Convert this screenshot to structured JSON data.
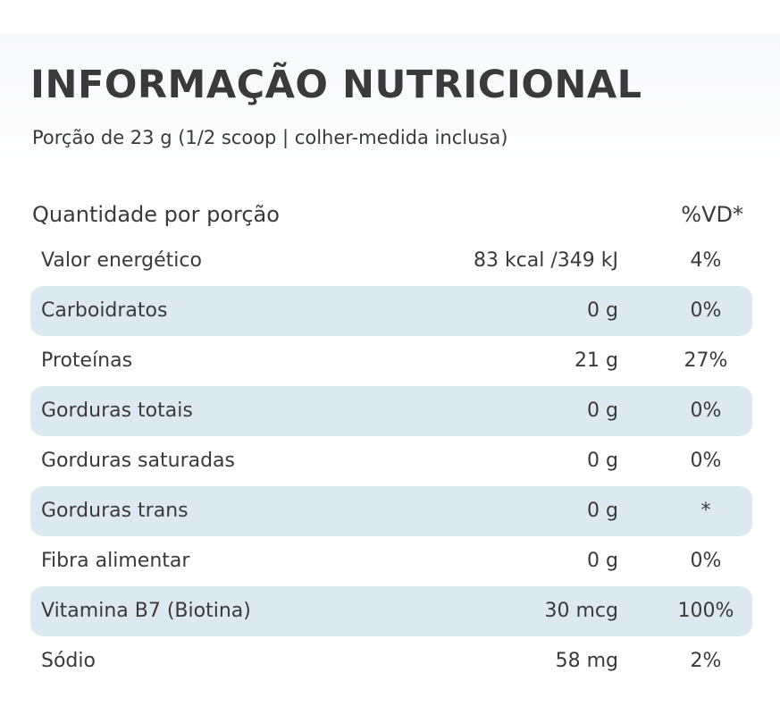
{
  "header": {
    "title": "INFORMAÇÃO NUTRICIONAL",
    "subtitle": "Porção de 23 g (1/2 scoop | colher-medida inclusa)"
  },
  "table": {
    "col_quantity": "Quantidade por porção",
    "col_vd": "%VD*",
    "rows": [
      {
        "name": "Valor energético",
        "amount": "83 kcal /349 kJ",
        "vd": "4%",
        "shaded": false
      },
      {
        "name": "Carboidratos",
        "amount": "0 g",
        "vd": "0%",
        "shaded": true
      },
      {
        "name": "Proteínas",
        "amount": "21 g",
        "vd": "27%",
        "shaded": false
      },
      {
        "name": "Gorduras totais",
        "amount": "0 g",
        "vd": "0%",
        "shaded": true
      },
      {
        "name": "Gorduras saturadas",
        "amount": "0 g",
        "vd": "0%",
        "shaded": false
      },
      {
        "name": "Gorduras trans",
        "amount": "0 g",
        "vd": "*",
        "shaded": true
      },
      {
        "name": "Fibra alimentar",
        "amount": "0 g",
        "vd": "0%",
        "shaded": false
      },
      {
        "name": "Vitamina B7 (Biotina)",
        "amount": "30 mcg",
        "vd": "100%",
        "shaded": true
      },
      {
        "name": "Sódio",
        "amount": "58 mg",
        "vd": "2%",
        "shaded": false
      }
    ]
  },
  "colors": {
    "text": "#3a3a3a",
    "row_shade": "#dde9f1",
    "background": "#ffffff"
  }
}
